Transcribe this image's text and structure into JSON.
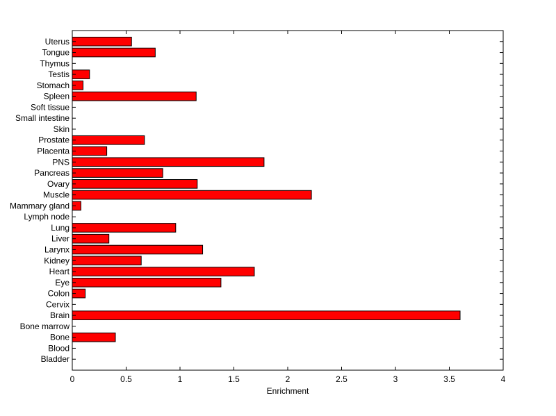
{
  "chart_data": {
    "type": "bar",
    "orientation": "horizontal",
    "categories": [
      "Bladder",
      "Blood",
      "Bone",
      "Bone marrow",
      "Brain",
      "Cervix",
      "Colon",
      "Eye",
      "Heart",
      "Kidney",
      "Larynx",
      "Liver",
      "Lung",
      "Lymph node",
      "Mammary gland",
      "Muscle",
      "Ovary",
      "Pancreas",
      "PNS",
      "Placenta",
      "Prostate",
      "Skin",
      "Small intestine",
      "Soft tissue",
      "Spleen",
      "Stomach",
      "Testis",
      "Thymus",
      "Tongue",
      "Uterus"
    ],
    "values": [
      0,
      0,
      0.4,
      0,
      3.6,
      0,
      0.12,
      1.38,
      1.69,
      0.64,
      1.21,
      0.34,
      0.96,
      0,
      0.08,
      2.22,
      1.16,
      0.84,
      1.78,
      0.32,
      0.67,
      0,
      0,
      0,
      1.15,
      0.1,
      0.16,
      0,
      0.77,
      0.55
    ],
    "title": "",
    "xlabel": "Enrichment",
    "ylabel": "",
    "xlim": [
      0,
      4
    ],
    "xticks": [
      "0",
      "0.5",
      "1",
      "1.5",
      "2",
      "2.5",
      "3",
      "3.5",
      "4"
    ],
    "grid": false,
    "bar_color": "#ff0000",
    "edge_color": "#000000"
  }
}
